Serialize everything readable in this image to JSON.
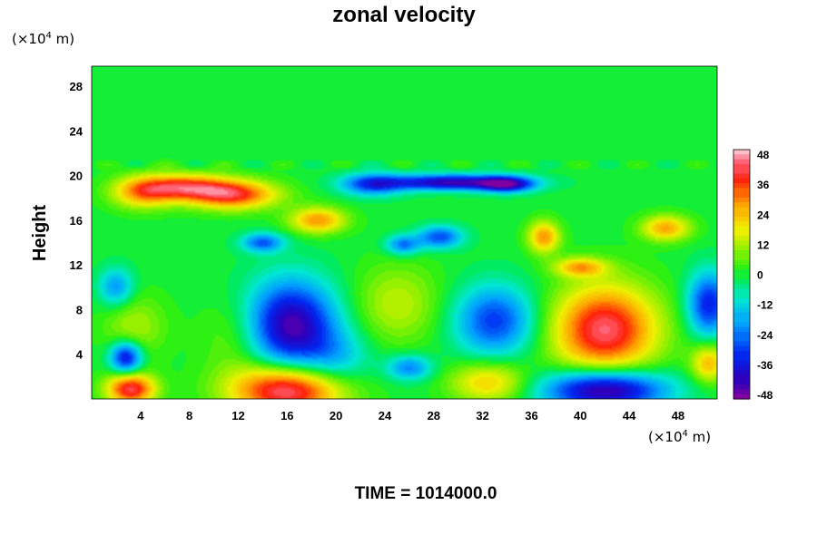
{
  "chart_data": {
    "type": "heatmap",
    "title": "zonal velocity",
    "ylabel": "Height",
    "xlabel": "",
    "y_unit": {
      "prefix": "(×10",
      "exp": "4",
      "suffix": " m)"
    },
    "x_unit": {
      "prefix": "(×10",
      "exp": "4",
      "suffix": " m)"
    },
    "x_ticks": [
      "4",
      "8",
      "12",
      "16",
      "20",
      "24",
      "28",
      "32",
      "36",
      "40",
      "44",
      "48"
    ],
    "x_tick_values": [
      4,
      8,
      12,
      16,
      20,
      24,
      28,
      32,
      36,
      40,
      44,
      48
    ],
    "y_ticks": [
      "4",
      "8",
      "12",
      "16",
      "20",
      "24",
      "28"
    ],
    "y_tick_values": [
      4,
      8,
      12,
      16,
      20,
      24,
      28
    ],
    "xlim": [
      0,
      51.2
    ],
    "ylim": [
      0,
      29.8
    ],
    "colorbar": {
      "ticks": [
        "48",
        "36",
        "24",
        "12",
        "0",
        "-12",
        "-24",
        "-36",
        "-48"
      ],
      "tick_values": [
        48,
        36,
        24,
        12,
        0,
        -12,
        -24,
        -36,
        -48
      ],
      "range": [
        -52,
        52
      ],
      "orientation": "vertical",
      "position": "right"
    },
    "features": [
      {
        "x": 16,
        "y": 0.8,
        "sx": 3.2,
        "sy": 1.6,
        "value": 50
      },
      {
        "x": 3.2,
        "y": 0.9,
        "sx": 1.4,
        "sy": 1.0,
        "value": 44
      },
      {
        "x": 42,
        "y": 6.2,
        "sx": 3.0,
        "sy": 2.8,
        "value": 46
      },
      {
        "x": 11.5,
        "y": 18.3,
        "sx": 2.6,
        "sy": 0.9,
        "value": 40
      },
      {
        "x": 7.5,
        "y": 19.0,
        "sx": 2.5,
        "sy": 0.8,
        "value": 34
      },
      {
        "x": 18.5,
        "y": 16.0,
        "sx": 1.6,
        "sy": 0.8,
        "value": 30
      },
      {
        "x": 4.2,
        "y": 18.5,
        "sx": 1.8,
        "sy": 1.0,
        "value": 28
      },
      {
        "x": 32.5,
        "y": 1.5,
        "sx": 2.2,
        "sy": 1.3,
        "value": 24
      },
      {
        "x": 37,
        "y": 14.5,
        "sx": 0.9,
        "sy": 1.0,
        "value": 30
      },
      {
        "x": 47,
        "y": 15.3,
        "sx": 1.4,
        "sy": 0.8,
        "value": 28
      },
      {
        "x": 40,
        "y": 11.8,
        "sx": 1.5,
        "sy": 0.6,
        "value": 26
      },
      {
        "x": 50.5,
        "y": 3.2,
        "sx": 1.0,
        "sy": 1.2,
        "value": 26
      },
      {
        "x": 25,
        "y": 8.5,
        "sx": 2.5,
        "sy": 2.5,
        "value": 14
      },
      {
        "x": 3.5,
        "y": 6.5,
        "sx": 1.8,
        "sy": 2.0,
        "value": 12
      },
      {
        "x": 12,
        "y": 5.5,
        "sx": 2.0,
        "sy": 2.5,
        "value": 10
      },
      {
        "x": 16.3,
        "y": 6.6,
        "sx": 2.6,
        "sy": 2.8,
        "value": -48
      },
      {
        "x": 42,
        "y": 0.8,
        "sx": 3.5,
        "sy": 1.3,
        "value": -52
      },
      {
        "x": 29.5,
        "y": 19.4,
        "sx": 3.8,
        "sy": 0.5,
        "value": -46
      },
      {
        "x": 34,
        "y": 19.2,
        "sx": 1.5,
        "sy": 0.5,
        "value": -36
      },
      {
        "x": 33,
        "y": 7.0,
        "sx": 2.3,
        "sy": 2.2,
        "value": -32
      },
      {
        "x": 2.8,
        "y": 3.7,
        "sx": 0.9,
        "sy": 1.0,
        "value": -40
      },
      {
        "x": 50.5,
        "y": 8.5,
        "sx": 1.2,
        "sy": 2.0,
        "value": -36
      },
      {
        "x": 14,
        "y": 14.0,
        "sx": 1.2,
        "sy": 0.6,
        "value": -28
      },
      {
        "x": 23,
        "y": 19.2,
        "sx": 1.8,
        "sy": 0.7,
        "value": -30
      },
      {
        "x": 28.5,
        "y": 14.5,
        "sx": 1.3,
        "sy": 0.7,
        "value": -30
      },
      {
        "x": 25.5,
        "y": 13.8,
        "sx": 1.0,
        "sy": 0.6,
        "value": -26
      },
      {
        "x": 2.0,
        "y": 10.0,
        "sx": 1.0,
        "sy": 1.2,
        "value": -22
      },
      {
        "x": 26,
        "y": 2.8,
        "sx": 1.3,
        "sy": 0.8,
        "value": -24
      },
      {
        "x": 20,
        "y": 3.5,
        "sx": 2.0,
        "sy": 1.8,
        "value": -14
      }
    ]
  },
  "footer": {
    "time_label": "TIME = 1014000.0"
  }
}
